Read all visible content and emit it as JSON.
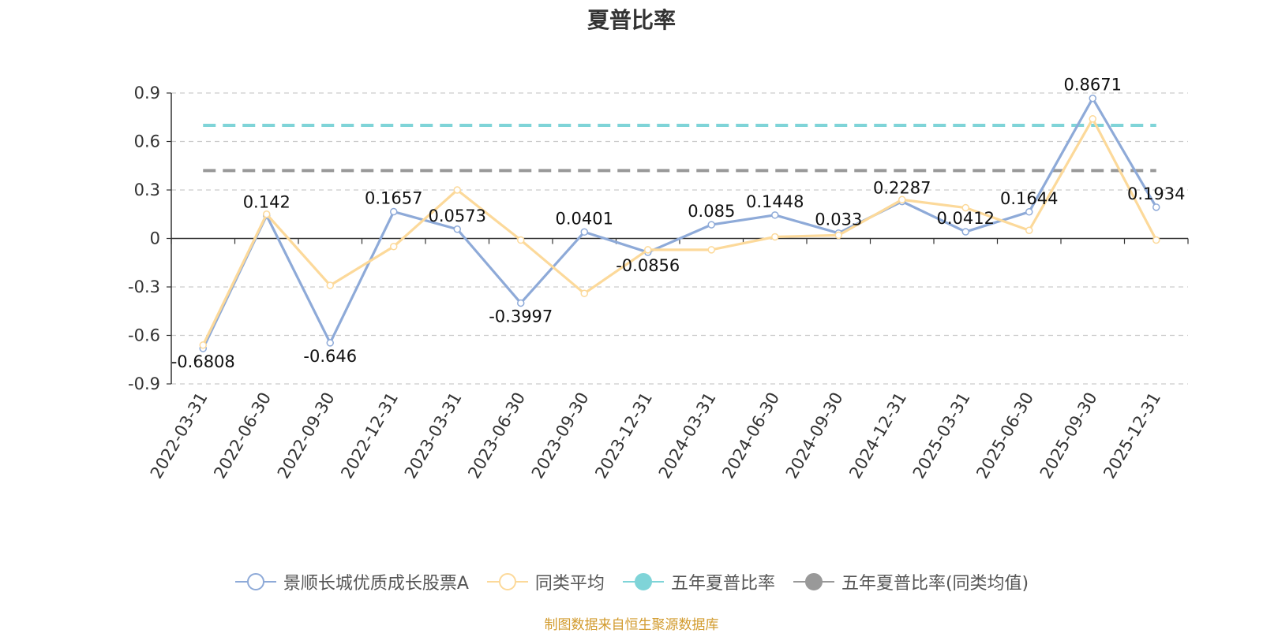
{
  "chart_data": {
    "type": "line",
    "title": "夏普比率",
    "categories": [
      "2022-03-31",
      "2022-06-30",
      "2022-09-30",
      "2022-12-31",
      "2023-03-31",
      "2023-06-30",
      "2023-09-30",
      "2023-12-31",
      "2024-03-31",
      "2024-06-30",
      "2024-09-30",
      "2024-12-31",
      "2025-03-31",
      "2025-06-30",
      "2025-09-30",
      "2025-12-31"
    ],
    "ylim": [
      -0.9,
      0.9
    ],
    "yticks": [
      "0.9",
      "0.6",
      "0.3",
      "0",
      "-0.3",
      "-0.6",
      "-0.9"
    ],
    "ytick_values": [
      0.9,
      0.6,
      0.3,
      0,
      -0.3,
      -0.6,
      -0.9
    ],
    "grid": true,
    "legend_position": "bottom",
    "series": [
      {
        "name": "景顺长城优质成长股票A",
        "color": "#8eaad8",
        "values": [
          -0.6808,
          0.142,
          -0.646,
          0.1657,
          0.0573,
          -0.3997,
          0.0401,
          -0.0856,
          0.085,
          0.1448,
          0.033,
          0.2287,
          0.0412,
          0.1644,
          0.8671,
          0.1934
        ],
        "labels": [
          "-0.6808",
          "0.142",
          "-0.646",
          "0.1657",
          "0.0573",
          "-0.3997",
          "0.0401",
          "-0.0856",
          "0.085",
          "0.1448",
          "0.033",
          "0.2287",
          "0.0412",
          "0.1644",
          "0.8671",
          "0.1934"
        ]
      },
      {
        "name": "同类平均",
        "color": "#fcd99a",
        "values": [
          -0.66,
          0.15,
          -0.29,
          -0.05,
          0.3,
          -0.01,
          -0.34,
          -0.07,
          -0.07,
          0.01,
          0.02,
          0.24,
          0.19,
          0.05,
          0.74,
          -0.01
        ]
      }
    ],
    "reference_lines": [
      {
        "name": "五年夏普比率",
        "value": 0.7,
        "color": "#7fd4d8"
      },
      {
        "name": "五年夏普比率(同类均值)",
        "value": 0.42,
        "color": "#999999"
      }
    ],
    "source_note": "制图数据来自恒生聚源数据库"
  }
}
